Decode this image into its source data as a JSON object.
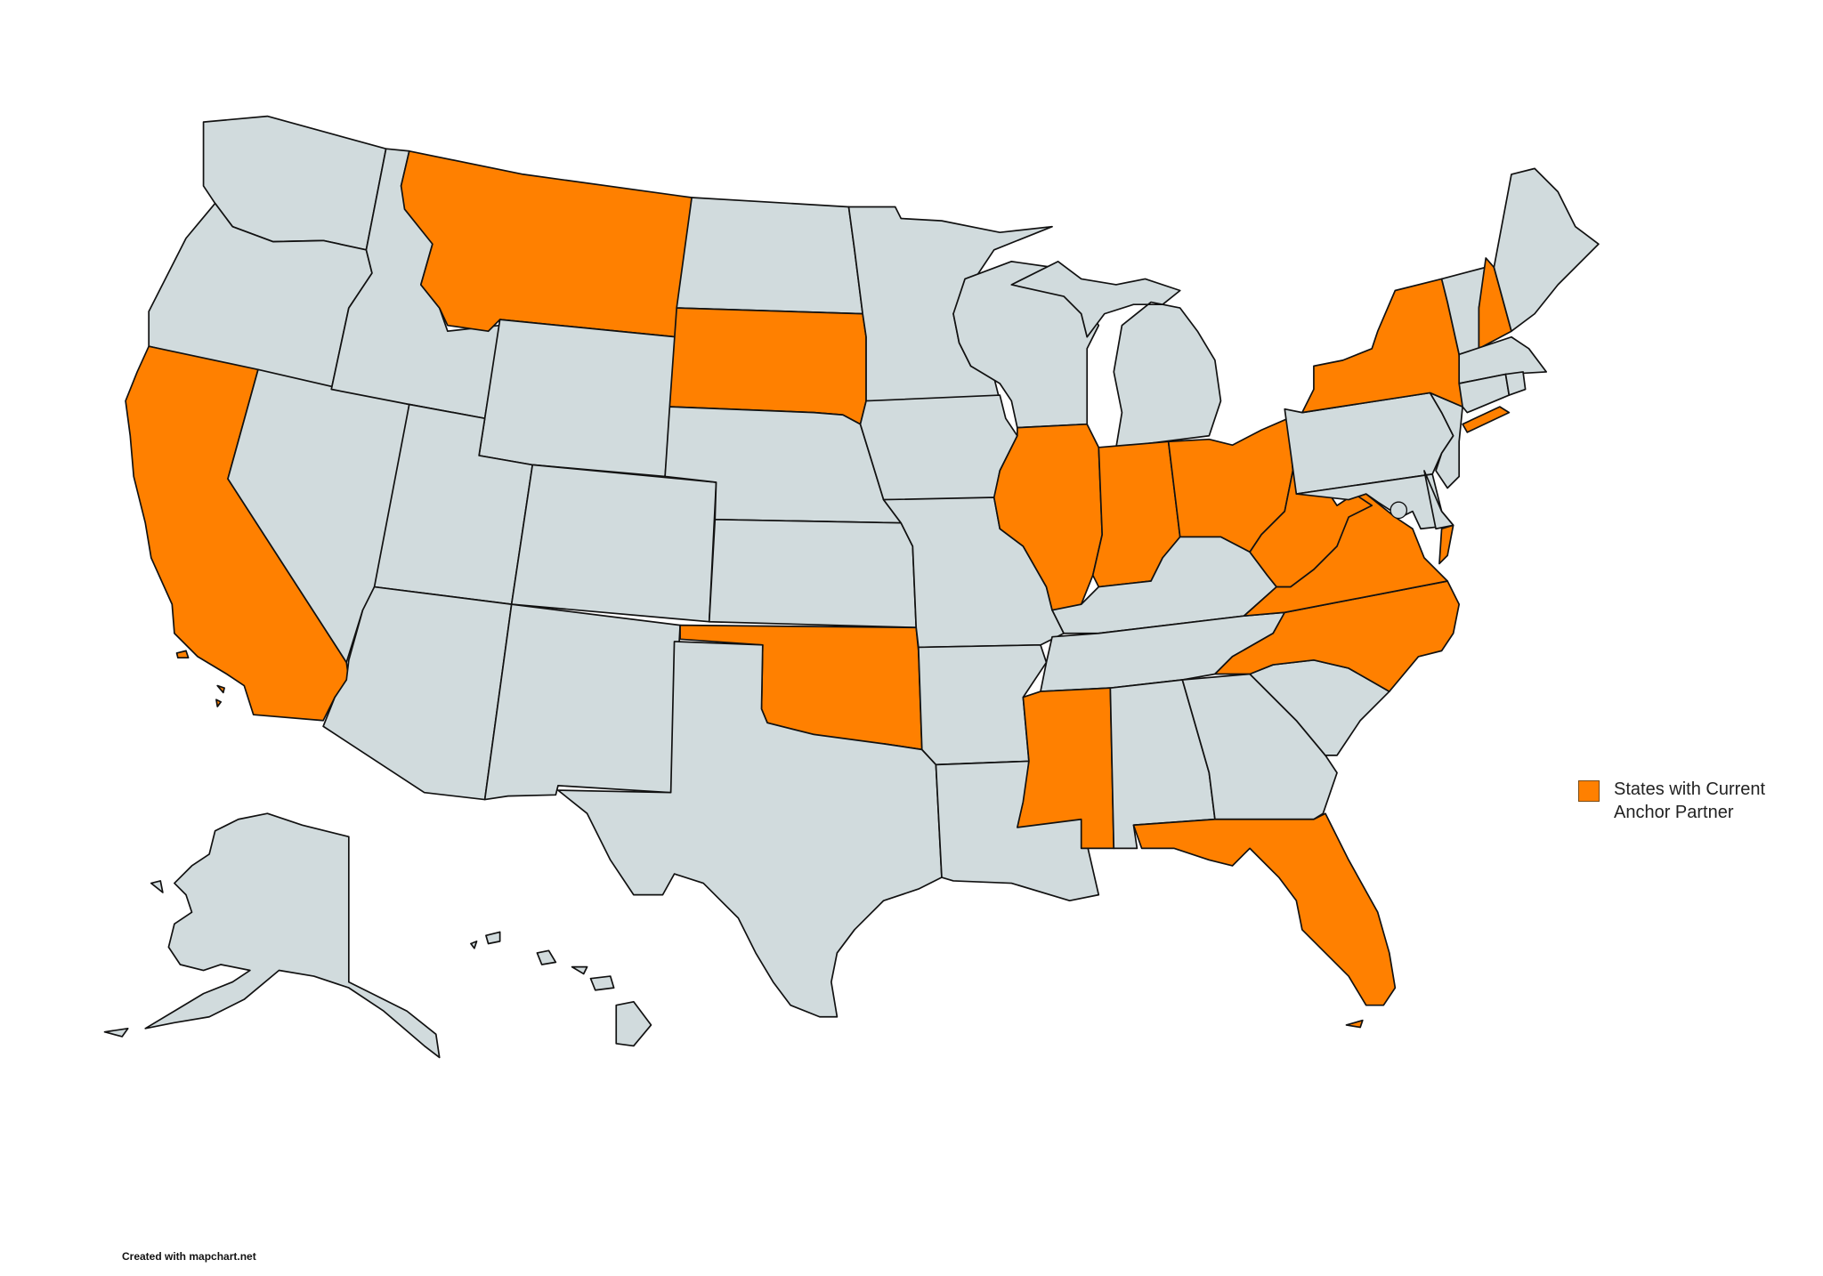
{
  "map": {
    "region": "United States",
    "highlighted_states": [
      "CA",
      "MT",
      "SD",
      "OK",
      "IL",
      "IN",
      "OH",
      "WV",
      "VA",
      "NC",
      "MS",
      "FL",
      "NY",
      "NH"
    ],
    "colors": {
      "highlight": "#FF8000",
      "default": "#D1DBDD",
      "border": "#111111",
      "background": "#FFFFFF"
    }
  },
  "legend": {
    "items": [
      {
        "label": "States with Current Anchor Partner",
        "color": "#FF8000"
      }
    ]
  },
  "footer": {
    "credit": "Created with mapchart.net"
  }
}
